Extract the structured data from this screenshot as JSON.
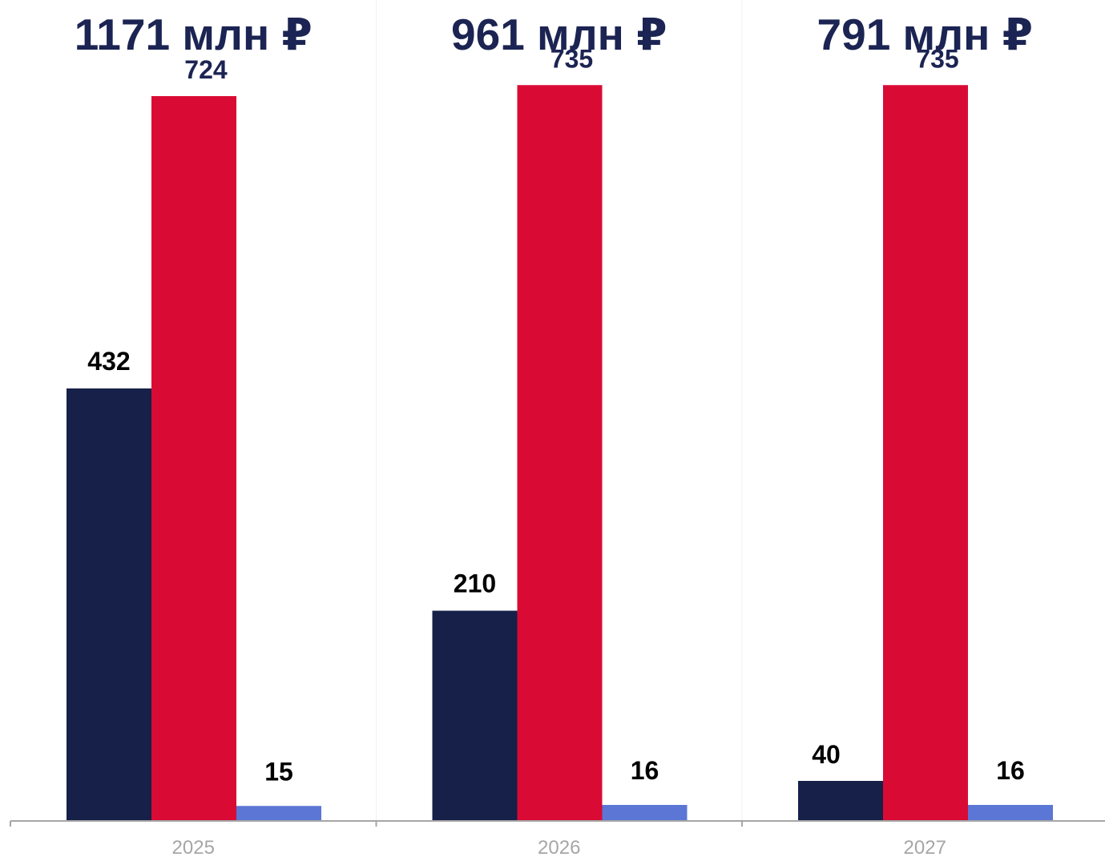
{
  "chart_data": {
    "type": "bar",
    "categories": [
      "2025",
      "2026",
      "2027"
    ],
    "group_totals": [
      "1171 млн ₽",
      "961 млн ₽",
      "791 млн ₽"
    ],
    "series": [
      {
        "values": [
          432,
          210,
          40
        ],
        "color": "#162049"
      },
      {
        "values": [
          724,
          735,
          735
        ],
        "color": "#D90B35"
      },
      {
        "values": [
          15,
          16,
          16
        ],
        "color": "#5B76D4"
      }
    ],
    "data_labels": [
      [
        "432",
        "724",
        "15"
      ],
      [
        "210",
        "735",
        "16"
      ],
      [
        "40",
        "735",
        "16"
      ]
    ],
    "ylim": [
      0,
      780
    ],
    "grid": false,
    "colors": {
      "group_total_text": "#1B2452",
      "red_label_text": "#1B2452",
      "dark_label_text": "#000000",
      "axis": "#A6A6A6",
      "tick_text": "#A6A6A6",
      "separator": "#F0F0F0"
    }
  }
}
